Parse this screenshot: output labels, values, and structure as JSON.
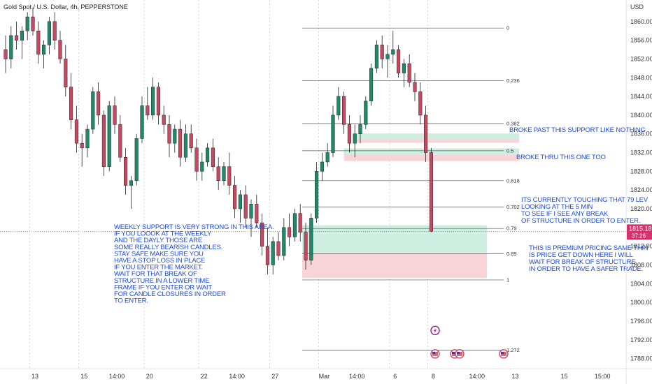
{
  "header": {
    "symbol_line": "Gold Spot / U.S. Dollar, 4h, PEPPERSTONE"
  },
  "axis": {
    "currency": "USD"
  },
  "price_badge": {
    "price": "1815.18",
    "countdown": "37:26",
    "color": "#d6336c"
  },
  "colors": {
    "up": "#1e8a6a",
    "down": "#c8485f",
    "annotation": "#1e4bd8"
  },
  "chart_data": {
    "type": "candlestick",
    "timeframe": "4h",
    "ylim": [
      1786,
      1864
    ],
    "y_ticks": [
      1788,
      1792,
      1796,
      1800,
      1804,
      1808,
      1812,
      1816,
      1820,
      1824,
      1828,
      1832,
      1836,
      1840,
      1844,
      1848,
      1852,
      1856,
      1860
    ],
    "x_ticks": [
      {
        "i": 5,
        "label": "13"
      },
      {
        "i": 14,
        "label": "15"
      },
      {
        "i": 20,
        "label": "14:00"
      },
      {
        "i": 26,
        "label": "20"
      },
      {
        "i": 36,
        "label": "22"
      },
      {
        "i": 42,
        "label": "14:00"
      },
      {
        "i": 49,
        "label": "27"
      },
      {
        "i": 58,
        "label": "Mar"
      },
      {
        "i": 64,
        "label": "14:00"
      },
      {
        "i": 71,
        "label": "6"
      },
      {
        "i": 78,
        "label": "8"
      },
      {
        "i": 86,
        "label": "14:00"
      },
      {
        "i": 93,
        "label": "13"
      },
      {
        "i": 102,
        "label": "15"
      },
      {
        "i": 109,
        "label": "15:00"
      }
    ],
    "session_lines": [
      4,
      13,
      25,
      35,
      48,
      57,
      70,
      77
    ],
    "candles": [
      [
        1854,
        1857,
        1849,
        1852
      ],
      [
        1852,
        1859,
        1850,
        1857
      ],
      [
        1857,
        1860,
        1854,
        1856
      ],
      [
        1856,
        1859,
        1852,
        1858
      ],
      [
        1858,
        1862,
        1856,
        1861
      ],
      [
        1861,
        1863,
        1857,
        1858
      ],
      [
        1858,
        1860,
        1851,
        1853
      ],
      [
        1853,
        1856,
        1850,
        1855
      ],
      [
        1855,
        1861,
        1853,
        1860
      ],
      [
        1860,
        1862,
        1854,
        1856
      ],
      [
        1856,
        1858,
        1851,
        1852
      ],
      [
        1852,
        1855,
        1844,
        1846
      ],
      [
        1846,
        1849,
        1837,
        1839
      ],
      [
        1839,
        1842,
        1832,
        1834
      ],
      [
        1834,
        1836,
        1829,
        1833
      ],
      [
        1833,
        1838,
        1831,
        1837
      ],
      [
        1837,
        1846,
        1836,
        1845
      ],
      [
        1845,
        1847,
        1838,
        1840
      ],
      [
        1840,
        1841,
        1827,
        1829
      ],
      [
        1829,
        1843,
        1828,
        1842
      ],
      [
        1842,
        1844,
        1836,
        1838
      ],
      [
        1838,
        1840,
        1830,
        1831
      ],
      [
        1831,
        1833,
        1823,
        1825
      ],
      [
        1825,
        1827,
        1820,
        1826
      ],
      [
        1826,
        1836,
        1825,
        1835
      ],
      [
        1835,
        1844,
        1834,
        1842
      ],
      [
        1842,
        1846,
        1839,
        1840
      ],
      [
        1840,
        1848,
        1839,
        1846
      ],
      [
        1846,
        1847,
        1838,
        1840
      ],
      [
        1840,
        1842,
        1836,
        1838
      ],
      [
        1838,
        1840,
        1831,
        1834
      ],
      [
        1834,
        1838,
        1832,
        1837
      ],
      [
        1837,
        1839,
        1829,
        1831
      ],
      [
        1831,
        1838,
        1830,
        1836
      ],
      [
        1836,
        1838,
        1832,
        1833
      ],
      [
        1833,
        1835,
        1826,
        1828
      ],
      [
        1828,
        1832,
        1826,
        1830
      ],
      [
        1830,
        1834,
        1829,
        1833
      ],
      [
        1833,
        1835,
        1828,
        1829
      ],
      [
        1829,
        1831,
        1824,
        1826
      ],
      [
        1826,
        1830,
        1825,
        1829
      ],
      [
        1829,
        1832,
        1823,
        1825
      ],
      [
        1825,
        1827,
        1818,
        1820
      ],
      [
        1820,
        1824,
        1817,
        1823
      ],
      [
        1823,
        1825,
        1816,
        1818
      ],
      [
        1818,
        1822,
        1814,
        1821
      ],
      [
        1821,
        1823,
        1816,
        1817
      ],
      [
        1817,
        1819,
        1810,
        1812
      ],
      [
        1812,
        1816,
        1806,
        1808
      ],
      [
        1808,
        1814,
        1806,
        1813
      ],
      [
        1813,
        1815,
        1809,
        1810
      ],
      [
        1810,
        1818,
        1809,
        1816
      ],
      [
        1816,
        1819,
        1812,
        1814
      ],
      [
        1814,
        1820,
        1813,
        1819
      ],
      [
        1819,
        1821,
        1813,
        1815
      ],
      [
        1815,
        1817,
        1807,
        1809
      ],
      [
        1809,
        1819,
        1808,
        1818
      ],
      [
        1818,
        1830,
        1817,
        1828
      ],
      [
        1828,
        1832,
        1826,
        1830
      ],
      [
        1830,
        1834,
        1829,
        1832
      ],
      [
        1832,
        1842,
        1831,
        1840
      ],
      [
        1840,
        1846,
        1839,
        1844
      ],
      [
        1844,
        1845,
        1836,
        1838
      ],
      [
        1838,
        1840,
        1832,
        1834
      ],
      [
        1834,
        1838,
        1831,
        1836
      ],
      [
        1836,
        1840,
        1834,
        1838
      ],
      [
        1838,
        1844,
        1837,
        1843
      ],
      [
        1843,
        1851,
        1842,
        1850
      ],
      [
        1850,
        1856,
        1849,
        1855
      ],
      [
        1855,
        1857,
        1850,
        1852
      ],
      [
        1852,
        1855,
        1848,
        1853
      ],
      [
        1853,
        1858,
        1851,
        1854
      ],
      [
        1854,
        1855,
        1848,
        1849
      ],
      [
        1849,
        1852,
        1846,
        1851
      ],
      [
        1851,
        1853,
        1846,
        1847
      ],
      [
        1847,
        1849,
        1843,
        1845
      ],
      [
        1845,
        1847,
        1838,
        1840
      ],
      [
        1840,
        1842,
        1830,
        1832
      ],
      [
        1832,
        1833,
        1815,
        1815.18
      ]
    ]
  },
  "fib": {
    "levels": [
      {
        "label": "0",
        "price": 1858.6
      },
      {
        "label": "0.236",
        "price": 1847.4
      },
      {
        "label": "0.382",
        "price": 1838.2
      },
      {
        "label": "0.5",
        "price": 1832.4
      },
      {
        "label": "0.618",
        "price": 1826.0
      },
      {
        "label": "0.702",
        "price": 1820.4
      },
      {
        "label": "0.79",
        "price": 1815.8
      },
      {
        "label": "0.89",
        "price": 1810.4
      },
      {
        "label": "1",
        "price": 1804.8
      },
      {
        "label": "1.272",
        "price": 1789.8
      }
    ]
  },
  "annotations": {
    "weekly": [
      "WEEKLY SUPPORT IS VERY STRONG IN THIS AREA.",
      "IF YOU LOOOK AT THE WEEKLY",
      "AND THE DAYLY THOSE ARE",
      " SOME REALLY BEARISH CANDLES.",
      "STAY SAFE MAKE SURE YOU",
      " HAVE A STOP LOSS IN PLACE",
      " IF YOU ENTER THE MARKET.",
      " WAIT FOR THAT BREAK OF",
      "STRUCTURE IN A LOWER TIME",
      " FRAME IF YOU ENTER OR WAIT",
      " FOR CANDLE CLOSURES IN ORDER",
      " TO ENTER."
    ],
    "broke_past": "BROKE PAST THIS SUPPORT LIKE NOTHING",
    "broke_thru": "BROKE THRU THIS ONE TOO",
    "touching": [
      "ITS CURRENTLY TOUCHING THAT 79 LEV",
      "LOOKING AT THE 5 MIN",
      "TO SEE IF I SEE ANY BREAK",
      "OF STRUCTURE IN ORDER TO ENTER."
    ],
    "premium": [
      "THIS IS PREMIUM PRICING SAME THIN",
      "  IS PRICE GET DOWN HERE I WILL",
      "   WAIT FOR BREAK OF STRUCTURE",
      "  IN ORDER TO HAVE A SAFER TRADE."
    ]
  }
}
